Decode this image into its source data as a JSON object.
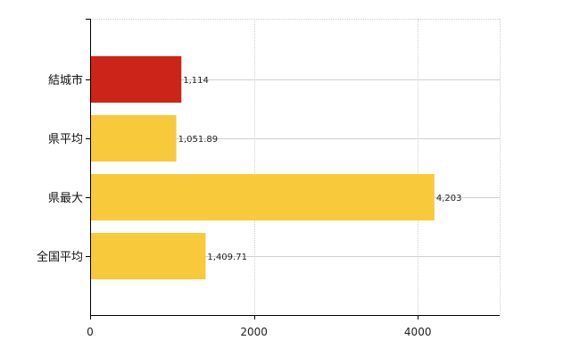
{
  "chart_data": {
    "type": "bar",
    "orientation": "horizontal",
    "categories": [
      "結城市",
      "県平均",
      "県最大",
      "全国平均"
    ],
    "values": [
      1114,
      1051.89,
      4203,
      1409.71
    ],
    "value_labels": [
      "1,114",
      "1,051.89",
      "4,203",
      "1,409.71"
    ],
    "colors": [
      "#cc2418",
      "#f9c93c",
      "#f9c93c",
      "#f9c93c"
    ],
    "xlim": [
      0,
      5000
    ],
    "x_ticks": [
      0,
      2000,
      4000
    ],
    "x_tick_labels": [
      "0",
      "2000",
      "4000"
    ],
    "grid": true,
    "title": "",
    "xlabel": "",
    "ylabel": ""
  }
}
